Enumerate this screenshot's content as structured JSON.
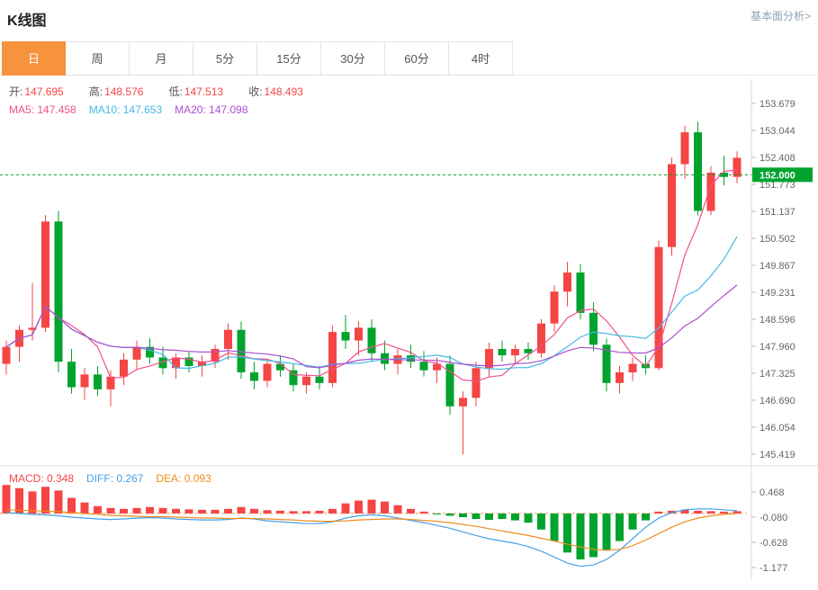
{
  "header": {
    "title": "K线图",
    "link_label": "基本面分析>"
  },
  "tabs": {
    "items": [
      {
        "label": "日",
        "active": true
      },
      {
        "label": "周",
        "active": false
      },
      {
        "label": "月",
        "active": false
      },
      {
        "label": "5分",
        "active": false
      },
      {
        "label": "15分",
        "active": false
      },
      {
        "label": "30分",
        "active": false
      },
      {
        "label": "60分",
        "active": false
      },
      {
        "label": "4时",
        "active": false
      }
    ]
  },
  "price_legend": {
    "items": [
      {
        "label": "开:",
        "value": "147.695"
      },
      {
        "label": "高:",
        "value": "148.576"
      },
      {
        "label": "低:",
        "value": "147.513"
      },
      {
        "label": "收:",
        "value": "148.493"
      }
    ]
  },
  "ma_legend": {
    "items": [
      {
        "label": "MA5:",
        "value": "147.458",
        "color": "#f0508c"
      },
      {
        "label": "MA10:",
        "value": "147.653",
        "color": "#45b8e6"
      },
      {
        "label": "MA20:",
        "value": "147.098",
        "color": "#aa4fd0"
      }
    ]
  },
  "macd_legend": {
    "items": [
      {
        "label": "MACD:",
        "value": "0.348",
        "color": "#f54545"
      },
      {
        "label": "DIFF:",
        "value": "0.267",
        "color": "#44a0e8"
      },
      {
        "label": "DEA:",
        "value": "0.093",
        "color": "#f08c1e"
      }
    ]
  },
  "current_price": {
    "label": "152.000",
    "value": 152.0
  },
  "colors": {
    "up": "#f54545",
    "down": "#00a32e",
    "ma5": "#f0508c",
    "ma10": "#45b8e6",
    "ma20": "#aa4fd0",
    "diff": "#44a0e8",
    "dea": "#f08c1e",
    "price_line": "#00a32e",
    "badge_bg": "#00a32e",
    "accent_tab": "#f7923d",
    "axis_line": "#d9d9d9",
    "axis_text": "#666666",
    "macd_zero_dash": "#eda05f"
  },
  "chart_data": {
    "type": "candlestick",
    "title": "K线图",
    "panels": [
      "price",
      "macd"
    ],
    "legend_position": "top-left",
    "grid": false,
    "price_axis_labels": [
      153.679,
      153.044,
      152.408,
      151.773,
      151.137,
      150.502,
      149.867,
      149.231,
      148.596,
      147.96,
      147.325,
      146.69,
      146.054,
      145.419
    ],
    "macd_axis_labels": [
      0.468,
      -0.08,
      -0.628,
      -1.177
    ],
    "ma_periods": [
      5,
      10,
      20
    ],
    "candles": [
      [
        147.55,
        148.1,
        147.3,
        147.95
      ],
      [
        147.95,
        148.45,
        147.6,
        148.35
      ],
      [
        148.35,
        149.45,
        148.1,
        148.4
      ],
      [
        148.4,
        151.05,
        148.3,
        150.9
      ],
      [
        150.9,
        151.15,
        147.35,
        147.6
      ],
      [
        147.6,
        147.9,
        146.85,
        147.0
      ],
      [
        147.0,
        147.45,
        146.7,
        147.3
      ],
      [
        147.3,
        147.5,
        146.8,
        146.95
      ],
      [
        146.95,
        147.4,
        146.55,
        147.25
      ],
      [
        147.25,
        147.8,
        147.05,
        147.65
      ],
      [
        147.65,
        148.1,
        147.4,
        147.95
      ],
      [
        147.95,
        148.15,
        147.55,
        147.7
      ],
      [
        147.7,
        147.95,
        147.3,
        147.45
      ],
      [
        147.45,
        147.8,
        147.2,
        147.7
      ],
      [
        147.7,
        147.85,
        147.35,
        147.5
      ],
      [
        147.5,
        147.75,
        147.25,
        147.6
      ],
      [
        147.6,
        148.0,
        147.45,
        147.9
      ],
      [
        147.9,
        148.5,
        147.65,
        148.35
      ],
      [
        148.35,
        148.55,
        147.2,
        147.35
      ],
      [
        147.35,
        147.6,
        146.95,
        147.15
      ],
      [
        147.15,
        147.65,
        147.0,
        147.55
      ],
      [
        147.55,
        147.75,
        147.25,
        147.4
      ],
      [
        147.4,
        147.55,
        146.9,
        147.05
      ],
      [
        147.05,
        147.35,
        146.85,
        147.25
      ],
      [
        147.25,
        147.5,
        146.95,
        147.1
      ],
      [
        147.1,
        148.45,
        147.0,
        148.3
      ],
      [
        148.3,
        148.7,
        147.9,
        148.1
      ],
      [
        148.1,
        148.55,
        147.75,
        148.4
      ],
      [
        148.4,
        148.6,
        147.6,
        147.8
      ],
      [
        147.8,
        148.1,
        147.4,
        147.55
      ],
      [
        147.55,
        147.9,
        147.3,
        147.75
      ],
      [
        147.75,
        148.0,
        147.45,
        147.6
      ],
      [
        147.6,
        147.85,
        147.25,
        147.4
      ],
      [
        147.4,
        147.7,
        147.1,
        147.55
      ],
      [
        147.55,
        147.75,
        146.35,
        146.55
      ],
      [
        146.55,
        146.9,
        145.42,
        146.75
      ],
      [
        146.75,
        147.6,
        146.55,
        147.45
      ],
      [
        147.45,
        148.05,
        147.25,
        147.9
      ],
      [
        147.9,
        148.1,
        147.6,
        147.75
      ],
      [
        147.75,
        148.0,
        147.55,
        147.9
      ],
      [
        147.9,
        148.05,
        147.65,
        147.8
      ],
      [
        147.8,
        148.6,
        147.7,
        148.5
      ],
      [
        148.5,
        149.4,
        148.3,
        149.25
      ],
      [
        149.25,
        149.95,
        148.9,
        149.7
      ],
      [
        149.7,
        149.9,
        148.6,
        148.75
      ],
      [
        148.75,
        149.0,
        147.85,
        148.0
      ],
      [
        148.0,
        148.15,
        146.9,
        147.1
      ],
      [
        147.1,
        147.5,
        146.85,
        147.35
      ],
      [
        147.35,
        147.7,
        147.15,
        147.55
      ],
      [
        147.55,
        147.75,
        147.3,
        147.45
      ],
      [
        147.45,
        150.45,
        147.4,
        150.3
      ],
      [
        150.3,
        152.4,
        150.1,
        152.25
      ],
      [
        152.25,
        153.15,
        151.9,
        153.0
      ],
      [
        153.0,
        153.25,
        151.05,
        151.15
      ],
      [
        151.15,
        152.2,
        151.05,
        152.05
      ],
      [
        152.05,
        152.45,
        151.75,
        151.95
      ],
      [
        151.95,
        152.55,
        151.8,
        152.4
      ]
    ],
    "macd": {
      "hist": [
        0.62,
        0.55,
        0.48,
        0.58,
        0.5,
        0.34,
        0.24,
        0.16,
        0.12,
        0.1,
        0.12,
        0.14,
        0.12,
        0.1,
        0.09,
        0.08,
        0.08,
        0.1,
        0.14,
        0.1,
        0.07,
        0.06,
        0.05,
        0.05,
        0.06,
        0.1,
        0.22,
        0.28,
        0.3,
        0.26,
        0.18,
        0.1,
        0.04,
        -0.02,
        -0.05,
        -0.08,
        -0.12,
        -0.14,
        -0.12,
        -0.15,
        -0.2,
        -0.35,
        -0.6,
        -0.85,
        -1.0,
        -0.95,
        -0.8,
        -0.6,
        -0.35,
        -0.15,
        0.04,
        0.06,
        0.08,
        0.06,
        0.05,
        0.04,
        0.05
      ],
      "diff": [
        0.02,
        0.0,
        -0.02,
        -0.03,
        -0.05,
        -0.08,
        -0.1,
        -0.12,
        -0.13,
        -0.12,
        -0.1,
        -0.09,
        -0.1,
        -0.12,
        -0.13,
        -0.14,
        -0.14,
        -0.13,
        -0.1,
        -0.12,
        -0.16,
        -0.18,
        -0.2,
        -0.22,
        -0.22,
        -0.18,
        -0.1,
        -0.05,
        -0.03,
        -0.05,
        -0.1,
        -0.15,
        -0.2,
        -0.26,
        -0.32,
        -0.4,
        -0.48,
        -0.55,
        -0.6,
        -0.65,
        -0.72,
        -0.82,
        -0.95,
        -1.08,
        -1.15,
        -1.12,
        -1.0,
        -0.8,
        -0.55,
        -0.3,
        -0.1,
        0.02,
        0.08,
        0.1,
        0.1,
        0.08,
        0.06
      ],
      "dea": [
        0.08,
        0.07,
        0.06,
        0.05,
        0.04,
        0.02,
        0.0,
        -0.02,
        -0.04,
        -0.05,
        -0.06,
        -0.07,
        -0.07,
        -0.08,
        -0.09,
        -0.1,
        -0.1,
        -0.11,
        -0.11,
        -0.11,
        -0.12,
        -0.13,
        -0.14,
        -0.16,
        -0.17,
        -0.17,
        -0.16,
        -0.14,
        -0.13,
        -0.12,
        -0.12,
        -0.13,
        -0.15,
        -0.17,
        -0.2,
        -0.24,
        -0.28,
        -0.33,
        -0.38,
        -0.43,
        -0.48,
        -0.54,
        -0.6,
        -0.67,
        -0.73,
        -0.78,
        -0.8,
        -0.78,
        -0.7,
        -0.58,
        -0.44,
        -0.3,
        -0.18,
        -0.1,
        -0.05,
        -0.02,
        0.0
      ]
    }
  }
}
